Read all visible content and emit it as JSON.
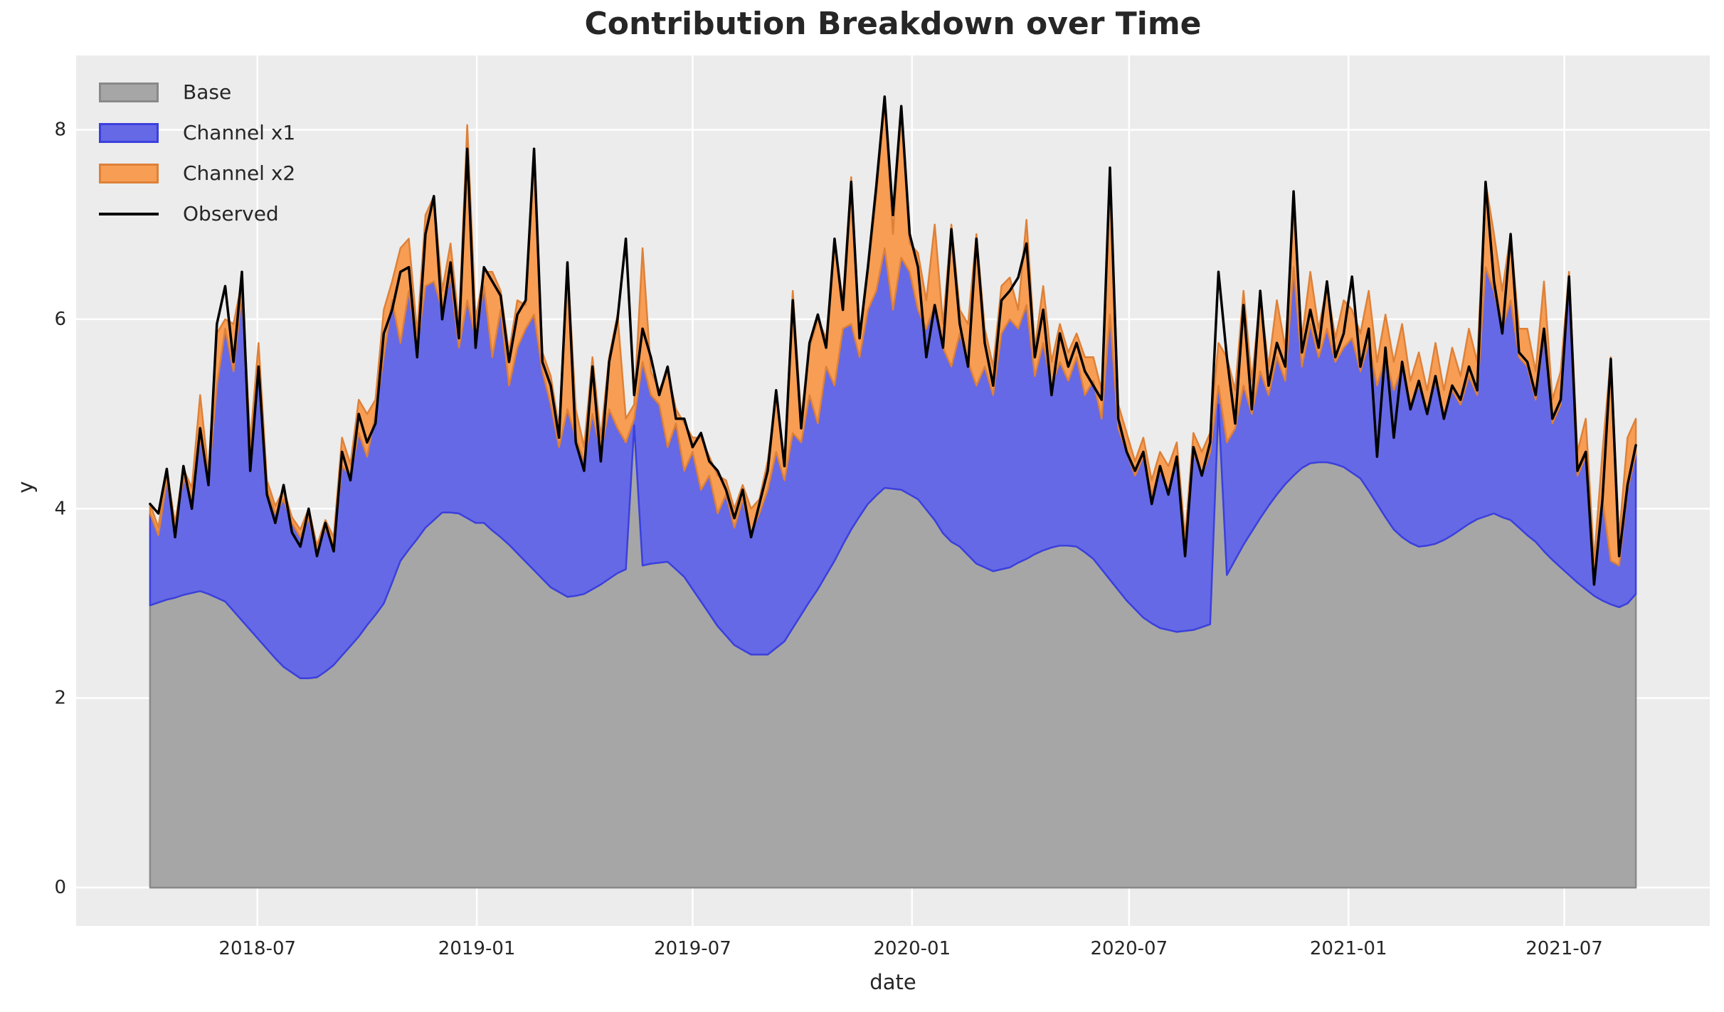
{
  "figure": {
    "title": "Contribution Breakdown over Time",
    "xlabel": "date",
    "ylabel": "y"
  },
  "legend": {
    "items": [
      {
        "label": "Base"
      },
      {
        "label": "Channel x1"
      },
      {
        "label": "Channel x2"
      },
      {
        "label": "Observed"
      }
    ]
  },
  "colors": {
    "figure_bg": "#ffffff",
    "plot_bg": "#ececec",
    "grid": "#ffffff",
    "text": "#262626",
    "base_fill": "#a6a6a6",
    "base_edge": "#898989",
    "x1_fill": "#6569e6",
    "x1_edge": "#3b40dc",
    "x2_fill": "#f79d54",
    "x2_edge": "#de8138",
    "observed": "#000000"
  },
  "chart_data": {
    "type": "area",
    "stacked": true,
    "title": "Contribution Breakdown over Time",
    "xlabel": "date",
    "ylabel": "y",
    "grid": true,
    "legend_position": "upper left",
    "x_start_date": "2018-04-02",
    "x_step_days": 7,
    "n_points": 179,
    "x_tick_labels": [
      "2018-07",
      "2019-01",
      "2019-07",
      "2020-01",
      "2020-07",
      "2021-01",
      "2021-07"
    ],
    "x_tick_day_offsets": [
      90,
      274,
      455,
      639,
      821,
      1005,
      1186
    ],
    "xlim_day_offsets": [
      -62,
      1308
    ],
    "y_ticks": [
      0,
      2,
      4,
      6,
      8
    ],
    "ylim": [
      -0.405,
      8.785
    ],
    "series": [
      {
        "name": "Base",
        "type": "area",
        "values": [
          2.98,
          3.01,
          3.04,
          3.06,
          3.09,
          3.11,
          3.13,
          3.1,
          3.06,
          3.02,
          2.92,
          2.82,
          2.72,
          2.62,
          2.52,
          2.42,
          2.33,
          2.27,
          2.21,
          2.21,
          2.22,
          2.28,
          2.35,
          2.45,
          2.55,
          2.65,
          2.77,
          2.88,
          3.0,
          3.22,
          3.45,
          3.57,
          3.68,
          3.8,
          3.88,
          3.96,
          3.96,
          3.95,
          3.9,
          3.85,
          3.85,
          3.77,
          3.7,
          3.62,
          3.53,
          3.44,
          3.35,
          3.26,
          3.17,
          3.12,
          3.07,
          3.08,
          3.1,
          3.15,
          3.2,
          3.26,
          3.32,
          3.36,
          4.88,
          3.4,
          3.42,
          3.43,
          3.44,
          3.36,
          3.28,
          3.15,
          3.02,
          2.89,
          2.76,
          2.66,
          2.56,
          2.51,
          2.46,
          2.46,
          2.46,
          2.53,
          2.6,
          2.74,
          2.88,
          3.02,
          3.15,
          3.3,
          3.45,
          3.62,
          3.78,
          3.92,
          4.05,
          4.14,
          4.22,
          4.21,
          4.2,
          4.15,
          4.1,
          3.99,
          3.88,
          3.74,
          3.65,
          3.6,
          3.51,
          3.42,
          3.38,
          3.34,
          3.36,
          3.38,
          3.43,
          3.47,
          3.52,
          3.56,
          3.59,
          3.61,
          3.61,
          3.6,
          3.54,
          3.47,
          3.36,
          3.25,
          3.14,
          3.03,
          2.94,
          2.85,
          2.79,
          2.74,
          2.72,
          2.7,
          2.71,
          2.72,
          2.75,
          2.78,
          5.1,
          3.3,
          3.46,
          3.62,
          3.76,
          3.9,
          4.03,
          4.15,
          4.26,
          4.35,
          4.43,
          4.48,
          4.49,
          4.49,
          4.47,
          4.44,
          4.38,
          4.32,
          4.19,
          4.05,
          3.91,
          3.78,
          3.7,
          3.64,
          3.6,
          3.61,
          3.63,
          3.67,
          3.72,
          3.78,
          3.84,
          3.89,
          3.92,
          3.95,
          3.91,
          3.88,
          3.8,
          3.72,
          3.65,
          3.55,
          3.46,
          3.38,
          3.3,
          3.22,
          3.15,
          3.08,
          3.03,
          2.99,
          2.96,
          3.0,
          3.1
        ]
      },
      {
        "name": "Channel x1",
        "type": "area",
        "values": [
          0.97,
          0.71,
          1.26,
          0.74,
          1.23,
          0.99,
          1.62,
          1.18,
          2.24,
          2.88,
          2.53,
          3.48,
          1.83,
          2.83,
          1.68,
          1.53,
          1.77,
          1.58,
          1.49,
          1.69,
          1.33,
          1.52,
          1.25,
          2.0,
          1.8,
          2.15,
          1.78,
          2.12,
          2.6,
          2.98,
          2.3,
          2.73,
          2.02,
          2.55,
          2.52,
          2.14,
          2.49,
          1.75,
          2.3,
          1.95,
          2.5,
          1.83,
          2.4,
          1.68,
          2.17,
          2.46,
          2.7,
          2.19,
          1.93,
          1.53,
          1.98,
          1.67,
          1.4,
          1.85,
          1.4,
          1.79,
          1.53,
          1.34,
          0.07,
          2.15,
          1.78,
          1.67,
          1.21,
          1.54,
          1.12,
          1.45,
          1.18,
          1.46,
          1.19,
          1.49,
          1.24,
          1.59,
          1.29,
          1.49,
          1.74,
          2.07,
          1.7,
          2.06,
          1.82,
          2.18,
          1.75,
          2.2,
          1.85,
          2.28,
          2.17,
          1.68,
          2.05,
          2.16,
          2.53,
          1.89,
          2.45,
          2.35,
          2.0,
          1.91,
          2.27,
          1.96,
          1.85,
          2.25,
          2.04,
          1.88,
          2.12,
          1.86,
          2.49,
          2.62,
          2.47,
          2.68,
          1.88,
          2.19,
          1.71,
          1.94,
          1.74,
          2.0,
          1.66,
          1.88,
          1.59,
          2.8,
          1.71,
          1.57,
          1.41,
          1.7,
          1.36,
          1.66,
          1.48,
          1.85,
          0.89,
          1.88,
          1.6,
          1.82,
          0.2,
          1.4,
          1.39,
          1.68,
          1.24,
          1.55,
          1.17,
          1.45,
          1.09,
          2.2,
          1.07,
          1.47,
          1.11,
          1.41,
          1.08,
          1.26,
          1.42,
          1.13,
          1.56,
          1.25,
          1.69,
          1.47,
          1.8,
          1.46,
          1.7,
          1.44,
          1.72,
          1.33,
          1.53,
          1.32,
          1.56,
          1.31,
          2.63,
          2.35,
          1.99,
          2.32,
          1.8,
          1.78,
          1.5,
          2.3,
          1.44,
          1.72,
          3.1,
          1.13,
          1.4,
          0.17,
          1.07,
          0.46,
          0.44,
          1.2,
          1.48
        ]
      },
      {
        "name": "Channel x2",
        "type": "area",
        "values": [
          0.1,
          0.08,
          0.1,
          0.05,
          0.1,
          0.12,
          0.45,
          0.1,
          0.55,
          0.1,
          0.5,
          0.1,
          0.15,
          0.3,
          0.1,
          0.08,
          0.1,
          0.06,
          0.08,
          0.1,
          0.06,
          0.08,
          0.1,
          0.3,
          0.12,
          0.35,
          0.45,
          0.15,
          0.5,
          0.2,
          1.0,
          0.55,
          0.15,
          0.75,
          0.9,
          0.2,
          0.35,
          0.25,
          1.85,
          0.2,
          0.15,
          0.9,
          0.2,
          0.35,
          0.5,
          0.25,
          1.7,
          0.2,
          0.3,
          0.2,
          1.55,
          0.3,
          0.15,
          0.6,
          0.15,
          0.55,
          1.2,
          0.25,
          0.15,
          1.2,
          0.25,
          0.15,
          0.8,
          0.15,
          0.5,
          0.15,
          0.55,
          0.2,
          0.4,
          0.15,
          0.2,
          0.15,
          0.25,
          0.15,
          0.3,
          0.6,
          0.2,
          1.5,
          0.25,
          0.5,
          1.1,
          0.3,
          1.5,
          0.3,
          1.55,
          0.25,
          0.4,
          1.0,
          1.55,
          0.8,
          1.6,
          0.3,
          0.6,
          0.3,
          0.85,
          0.25,
          1.5,
          0.25,
          0.4,
          1.6,
          0.4,
          0.3,
          0.5,
          0.44,
          0.2,
          0.9,
          0.3,
          0.6,
          0.25,
          0.4,
          0.3,
          0.25,
          0.4,
          0.25,
          0.3,
          1.55,
          0.25,
          0.2,
          0.15,
          0.2,
          0.15,
          0.2,
          0.25,
          0.15,
          0.1,
          0.2,
          0.25,
          0.2,
          0.45,
          0.9,
          0.4,
          1.0,
          0.35,
          0.8,
          0.3,
          0.6,
          0.35,
          0.6,
          0.3,
          0.55,
          0.3,
          0.45,
          0.25,
          0.5,
          0.3,
          0.4,
          0.55,
          0.25,
          0.45,
          0.3,
          0.45,
          0.25,
          0.35,
          0.2,
          0.4,
          0.25,
          0.45,
          0.3,
          0.5,
          0.35,
          0.9,
          0.6,
          0.4,
          0.7,
          0.3,
          0.4,
          0.3,
          0.55,
          0.25,
          0.35,
          0.1,
          0.25,
          0.4,
          0.2,
          0.5,
          2.15,
          0.3,
          0.55,
          0.37
        ]
      },
      {
        "name": "Observed",
        "type": "line",
        "values": [
          4.05,
          3.95,
          4.42,
          3.7,
          4.45,
          4.0,
          4.85,
          4.25,
          5.95,
          6.35,
          5.55,
          6.5,
          4.4,
          5.5,
          4.15,
          3.85,
          4.25,
          3.75,
          3.6,
          4.0,
          3.5,
          3.85,
          3.55,
          4.6,
          4.3,
          5.0,
          4.7,
          4.9,
          5.85,
          6.1,
          6.5,
          6.55,
          5.6,
          6.9,
          7.3,
          6.0,
          6.6,
          5.8,
          7.8,
          5.7,
          6.55,
          6.4,
          6.25,
          5.55,
          6.05,
          6.2,
          7.8,
          5.55,
          5.3,
          4.75,
          6.6,
          4.7,
          4.4,
          5.5,
          4.5,
          5.55,
          6.0,
          6.85,
          5.2,
          5.9,
          5.6,
          5.2,
          5.5,
          4.95,
          4.95,
          4.65,
          4.8,
          4.5,
          4.4,
          4.2,
          3.9,
          4.2,
          3.7,
          4.05,
          4.4,
          5.25,
          4.45,
          6.2,
          4.85,
          5.75,
          6.05,
          5.7,
          6.85,
          6.1,
          7.45,
          5.8,
          6.55,
          7.4,
          8.35,
          7.1,
          8.25,
          6.9,
          6.55,
          5.6,
          6.15,
          5.7,
          6.95,
          5.95,
          5.5,
          6.85,
          5.75,
          5.3,
          6.2,
          6.3,
          6.44,
          6.8,
          5.6,
          6.1,
          5.2,
          5.85,
          5.5,
          5.75,
          5.45,
          5.3,
          5.15,
          7.6,
          4.95,
          4.6,
          4.4,
          4.6,
          4.05,
          4.45,
          4.15,
          4.55,
          3.5,
          4.65,
          4.35,
          4.7,
          6.5,
          5.6,
          4.9,
          6.15,
          5.05,
          6.3,
          5.3,
          5.75,
          5.5,
          7.35,
          5.65,
          6.1,
          5.7,
          6.4,
          5.6,
          5.85,
          6.45,
          5.5,
          5.9,
          4.55,
          5.7,
          4.75,
          5.55,
          5.05,
          5.35,
          5.0,
          5.4,
          4.95,
          5.3,
          5.15,
          5.5,
          5.25,
          7.45,
          6.4,
          5.85,
          6.9,
          5.65,
          5.55,
          5.2,
          5.9,
          4.95,
          5.15,
          6.45,
          4.4,
          4.6,
          3.2,
          4.1,
          5.58,
          3.5,
          4.25,
          4.67
        ]
      }
    ]
  }
}
